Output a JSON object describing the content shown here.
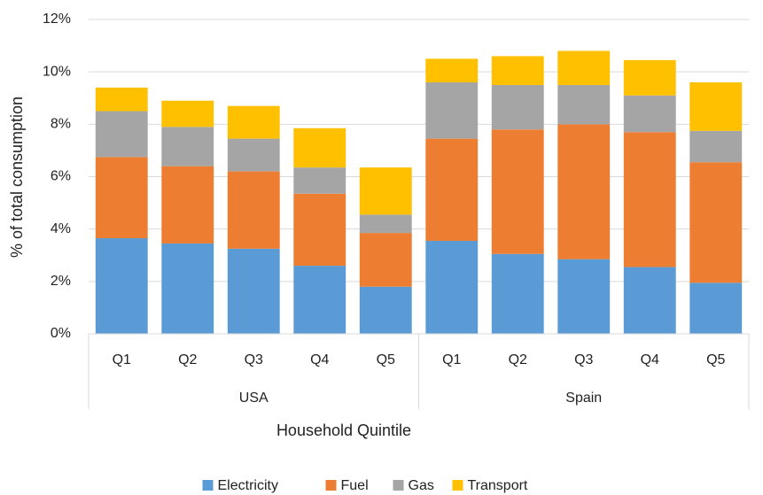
{
  "chart_data": {
    "type": "stacked-bar",
    "x_label": "Household Quintile",
    "y_label": "% of total consumption",
    "groups": [
      {
        "name": "USA",
        "categories": [
          "Q1",
          "Q2",
          "Q3",
          "Q4",
          "Q5"
        ]
      },
      {
        "name": "Spain",
        "categories": [
          "Q1",
          "Q2",
          "Q3",
          "Q4",
          "Q5"
        ]
      }
    ],
    "series": [
      {
        "name": "Electricity",
        "color": "#5b9bd5",
        "values": [
          3.65,
          3.45,
          3.25,
          2.6,
          1.8,
          3.55,
          3.05,
          2.85,
          2.55,
          1.95
        ]
      },
      {
        "name": "Fuel",
        "color": "#ed7d31",
        "values": [
          3.1,
          2.95,
          2.95,
          2.75,
          2.05,
          3.9,
          4.75,
          5.15,
          5.15,
          4.6
        ]
      },
      {
        "name": "Gas",
        "color": "#a5a5a5",
        "values": [
          1.75,
          1.5,
          1.25,
          1.0,
          0.7,
          2.15,
          1.7,
          1.5,
          1.4,
          1.2
        ]
      },
      {
        "name": "Transport",
        "color": "#ffc000",
        "values": [
          0.9,
          1.0,
          1.25,
          1.5,
          1.8,
          0.9,
          1.1,
          1.3,
          1.35,
          1.85
        ]
      }
    ],
    "ylim": [
      0,
      12
    ],
    "yticks": [
      {
        "value": 0,
        "label": "0%"
      },
      {
        "value": 2,
        "label": "2%"
      },
      {
        "value": 4,
        "label": "4%"
      },
      {
        "value": 6,
        "label": "6%"
      },
      {
        "value": 8,
        "label": "8%"
      },
      {
        "value": 10,
        "label": "10%"
      },
      {
        "value": 12,
        "label": "12%"
      }
    ],
    "grid": true,
    "legend": "bottom"
  }
}
